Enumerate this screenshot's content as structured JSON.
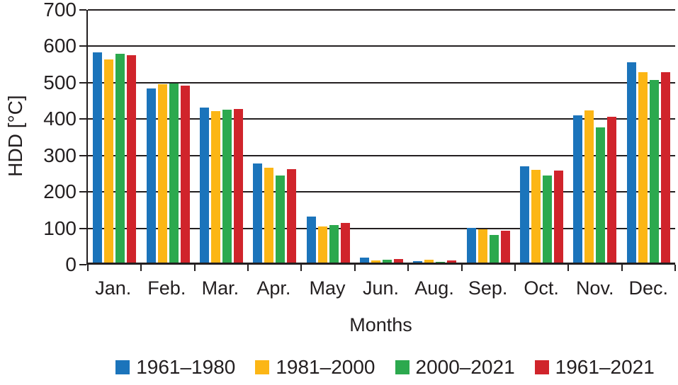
{
  "chart_data": {
    "type": "bar",
    "title": "",
    "xlabel": "Months",
    "ylabel": "HDD [°C]",
    "ylim": [
      0,
      700
    ],
    "yticks": [
      0,
      100,
      200,
      300,
      400,
      500,
      600,
      700
    ],
    "grid": "horizontal",
    "legend_position": "bottom",
    "categories": [
      "Jan.",
      "Feb.",
      "Mar.",
      "Apr.",
      "May",
      "Jun.",
      "Aug.",
      "Sep.",
      "Oct.",
      "Nov.",
      "Dec."
    ],
    "series": [
      {
        "name": "1961–1980",
        "color": "#1B74BB",
        "values": [
          582,
          483,
          430,
          275,
          127,
          14,
          3,
          97,
          267,
          407,
          555
        ]
      },
      {
        "name": "1981–2000",
        "color": "#FCB615",
        "values": [
          563,
          494,
          420,
          263,
          101,
          5,
          8,
          93,
          256,
          421,
          528
        ]
      },
      {
        "name": "2000–2021",
        "color": "#2CA94E",
        "values": [
          578,
          496,
          424,
          241,
          103,
          7,
          2,
          77,
          241,
          375,
          505
        ]
      },
      {
        "name": "1961–2021",
        "color": "#D0242B",
        "values": [
          575,
          490,
          425,
          259,
          109,
          10,
          5,
          89,
          254,
          403,
          527
        ]
      }
    ],
    "axis_color": "#231F20"
  }
}
